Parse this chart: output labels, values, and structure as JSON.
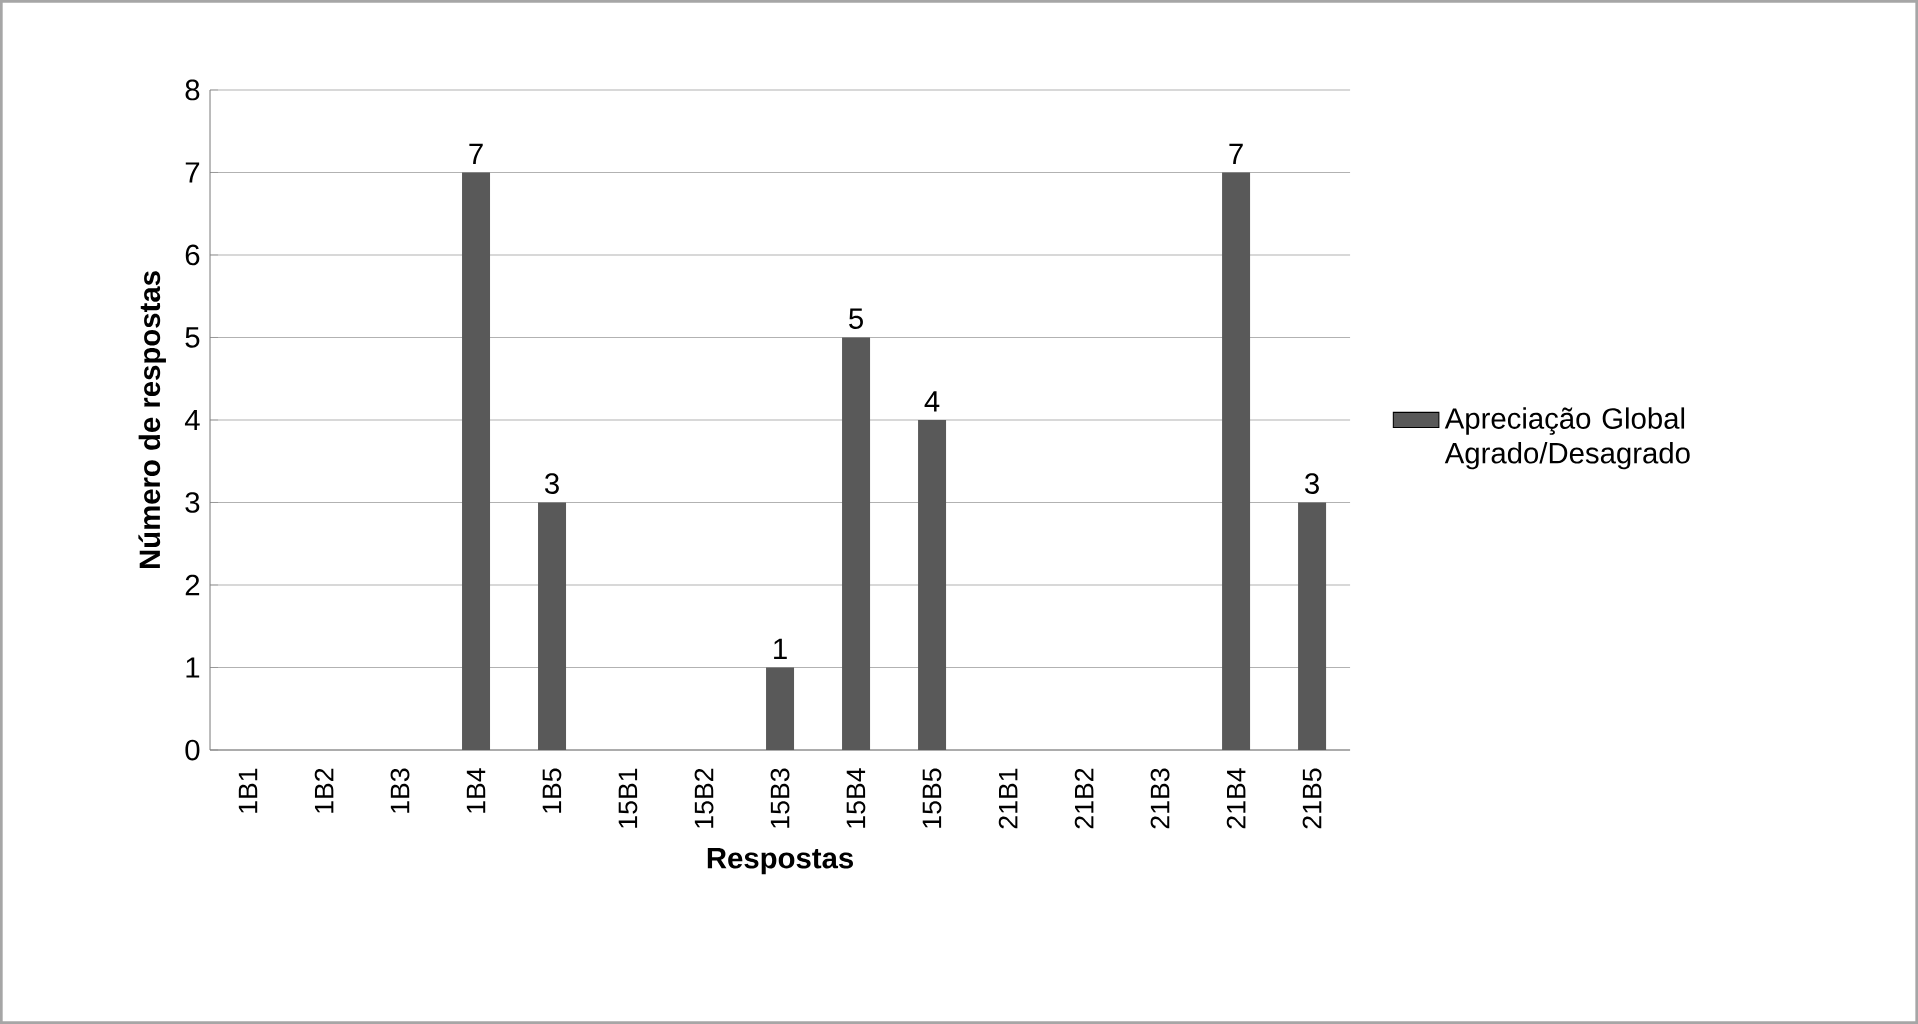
{
  "chart_data": {
    "type": "bar",
    "xlabel": "Respostas",
    "ylabel": "Número de respostas",
    "categories": [
      "1B1",
      "1B2",
      "1B3",
      "1B4",
      "1B5",
      "15B1",
      "15B2",
      "15B3",
      "15B4",
      "15B5",
      "21B1",
      "21B2",
      "21B3",
      "21B4",
      "21B5"
    ],
    "series": [
      {
        "name": "Apreciação Global Agrado/Desagrado",
        "color": "#595959",
        "values": [
          0,
          0,
          0,
          7,
          3,
          0,
          0,
          1,
          5,
          4,
          0,
          0,
          0,
          7,
          3
        ]
      }
    ],
    "value_labels": [
      null,
      null,
      null,
      "7",
      "3",
      null,
      null,
      "1",
      "5",
      "4",
      null,
      null,
      null,
      "7",
      "3"
    ],
    "ylim": [
      0,
      8
    ],
    "yticks": [
      0,
      1,
      2,
      3,
      4,
      5,
      6,
      7,
      8
    ],
    "grid": "y",
    "legend": "right"
  }
}
